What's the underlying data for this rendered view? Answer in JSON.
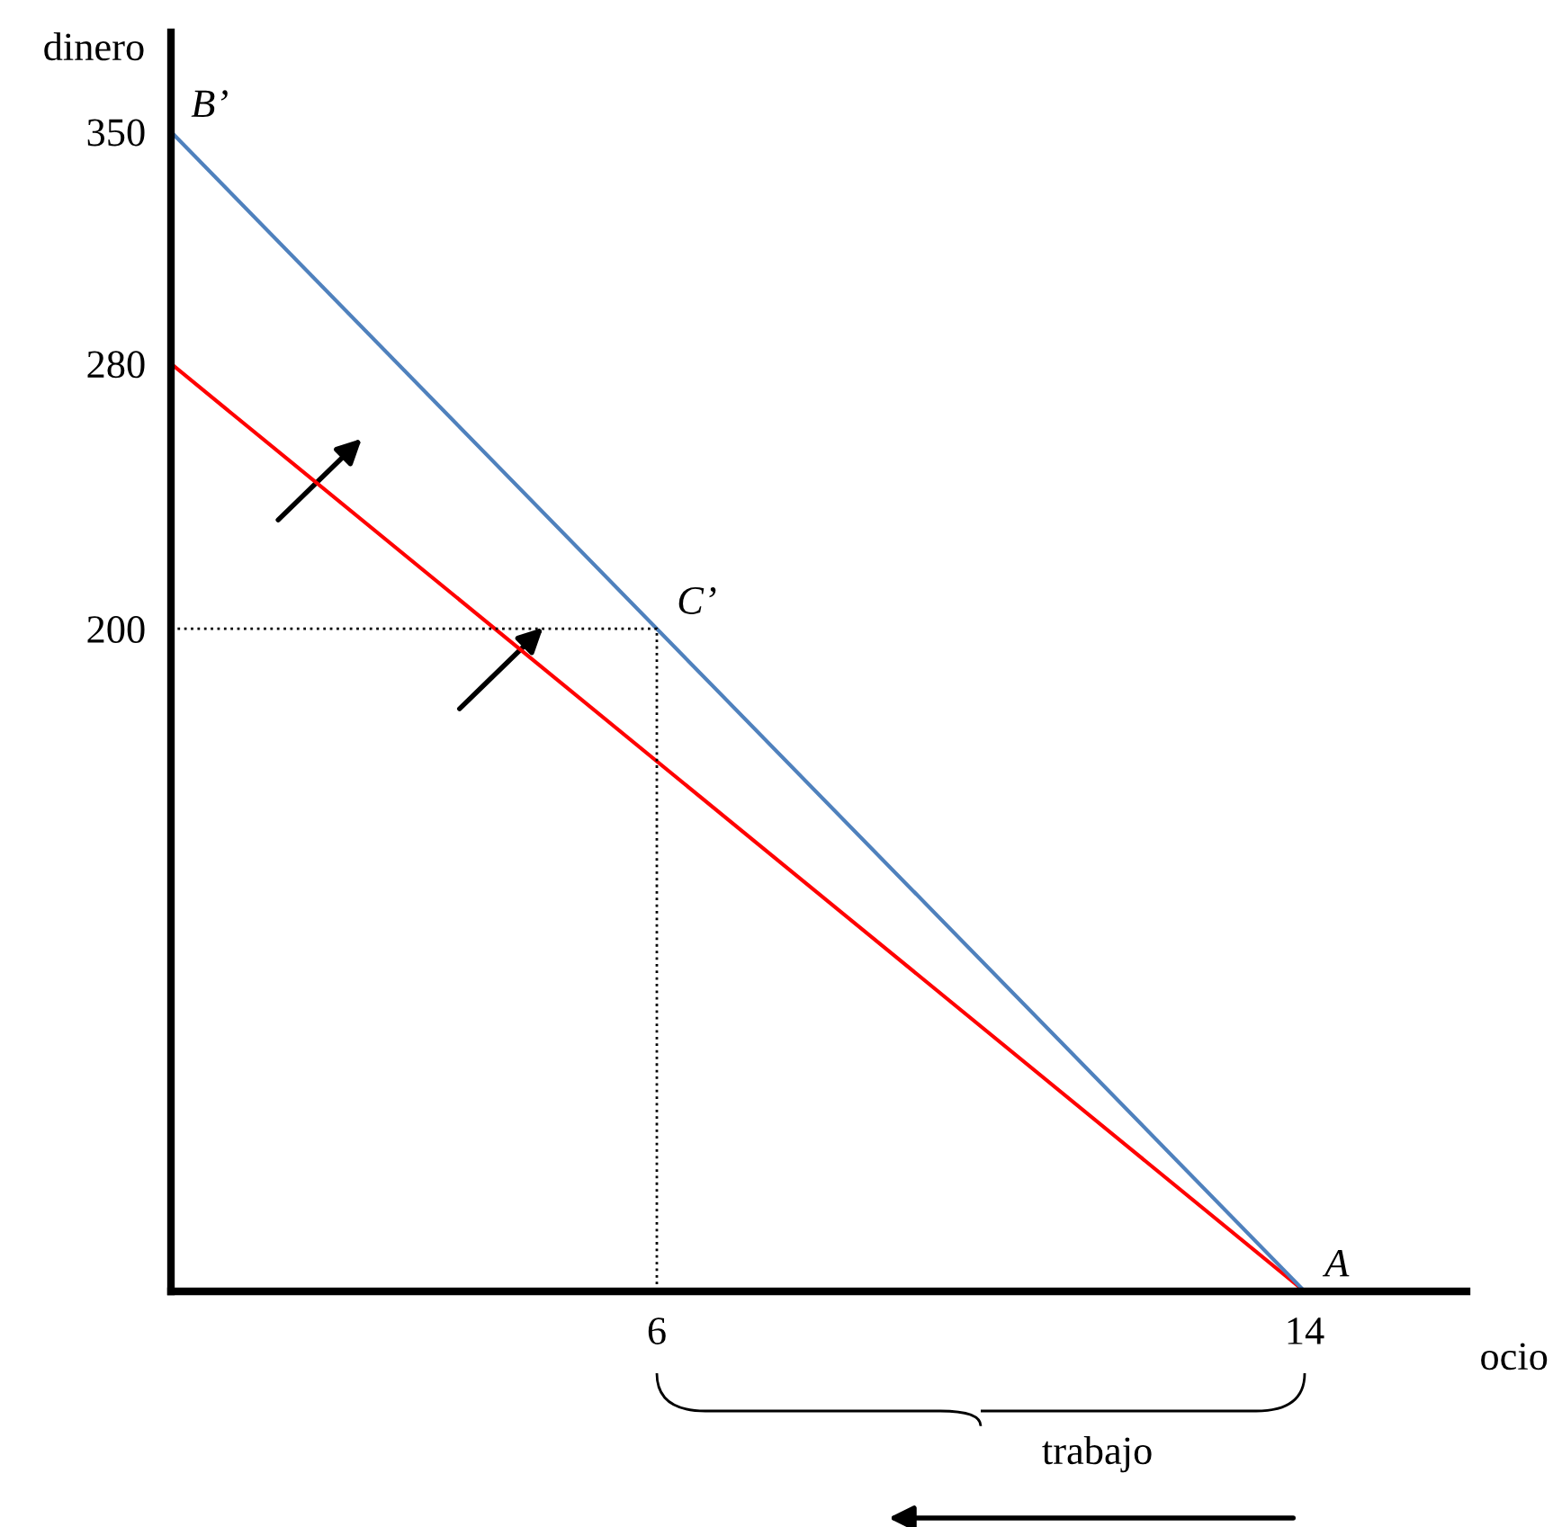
{
  "chart_data": {
    "type": "line",
    "xlabel": "ocio",
    "ylabel": "dinero",
    "xlim": [
      0,
      16
    ],
    "ylim": [
      0,
      380
    ],
    "xticks": [
      6,
      14
    ],
    "yticks": [
      200,
      280,
      350
    ],
    "grid": false,
    "legend": false,
    "series": [
      {
        "x": [
          0,
          14
        ],
        "values": [
          280,
          0
        ],
        "color": "#ff0000",
        "line_style": "solid"
      },
      {
        "x": [
          0,
          14
        ],
        "values": [
          350,
          0
        ],
        "color": "#4f81bd",
        "line_style": "solid"
      },
      {
        "x": [
          0,
          6,
          6
        ],
        "values": [
          200,
          200,
          0
        ],
        "color": "#000000",
        "line_style": "dotted"
      }
    ],
    "annotations": [
      {
        "text": "B’",
        "x": 0,
        "y": 350
      },
      {
        "text": "C’",
        "x": 6,
        "y": 200
      },
      {
        "text": "A",
        "x": 14,
        "y": 0
      },
      "trabajo"
    ]
  }
}
